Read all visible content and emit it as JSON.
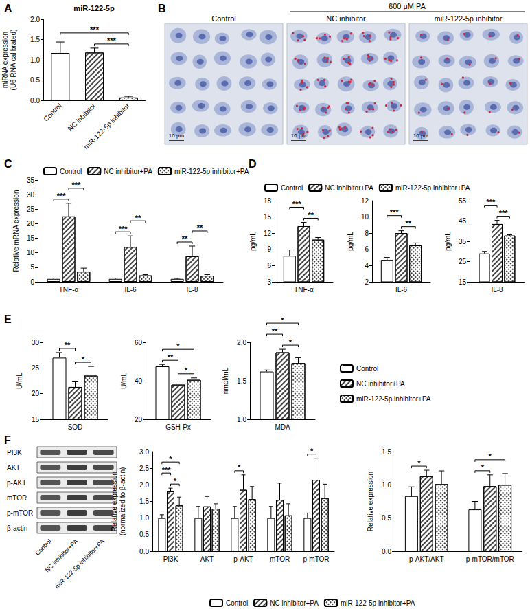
{
  "panel_labels": [
    "A",
    "B",
    "C",
    "D",
    "E",
    "F"
  ],
  "micrographs": {
    "treatment": "600 μM PA",
    "panels": [
      {
        "label": "Control",
        "scale_bar": "10 μm"
      },
      {
        "label": "NC inhibitor",
        "scale_bar": "10 μm"
      },
      {
        "label": "miR-122-5p inhibitor",
        "scale_bar": "10 μm"
      }
    ]
  },
  "western_blot": {
    "rows": [
      "PI3K",
      "AKT",
      "p-AKT",
      "mTOR",
      "p-mTOR",
      "β-actin"
    ],
    "lanes": [
      "Control",
      "NC inhibitor+PA",
      "miR-122-5p inhibitor+PA"
    ]
  },
  "chart_data": [
    {
      "type": "bar",
      "title": "miR-122-5p",
      "y_label": "miRNA expression\n(U6 RNA calibrated)",
      "categories": [
        "Control",
        "NC inhibitor",
        "miR-122-5p inhibitor"
      ],
      "values": [
        1.17,
        1.18,
        0.07
      ],
      "errors": [
        0.27,
        0.11,
        0.03
      ],
      "color": "#ffffff",
      "ylim": [
        0,
        2
      ],
      "yticks": [
        {
          "value": 0,
          "label": "0.0"
        },
        {
          "value": 0.5,
          "label": "0.5"
        },
        {
          "value": 1,
          "label": "1.0"
        },
        {
          "value": 1.5,
          "label": "1.5"
        },
        {
          "value": 2,
          "label": "2.0"
        }
      ],
      "annotations": [
        {
          "between": [
            "NC inhibitor",
            "miR-122-5p inhibitor"
          ],
          "text": "***"
        },
        {
          "between": [
            "Control",
            "miR-122-5p inhibitor"
          ],
          "text": "***"
        }
      ]
    },
    {
      "type": "bar",
      "y_label": "Relative mRNA expression",
      "categories": [
        "TNF-α",
        "IL-6",
        "IL-8"
      ],
      "series": [
        {
          "name": "Control",
          "color": "#ffffff",
          "values": [
            1.0,
            1.0,
            1.0
          ],
          "errors": [
            0.3,
            0.3,
            0.2
          ]
        },
        {
          "name": "NC inhibitor+PA",
          "color": "#ffffff",
          "values": [
            22.5,
            12.0,
            8.8
          ],
          "errors": [
            4.5,
            3.8,
            3.5
          ]
        },
        {
          "name": "miR-122-5p inhibitor+PA",
          "color": "#ffffff",
          "values": [
            3.5,
            2.2,
            2.1
          ],
          "errors": [
            1.2,
            0.3,
            0.4
          ]
        }
      ],
      "ylim": [
        0,
        35
      ],
      "yticks": [
        0,
        5,
        10,
        15,
        20,
        25,
        30,
        35
      ],
      "legend": "top",
      "annotations": [
        {
          "category": "TNF-α",
          "between": [
            "Control",
            "NC inhibitor+PA"
          ],
          "text": "***"
        },
        {
          "category": "TNF-α",
          "between": [
            "NC inhibitor+PA",
            "miR-122-5p inhibitor+PA"
          ],
          "text": "***"
        },
        {
          "category": "IL-6",
          "between": [
            "Control",
            "NC inhibitor+PA"
          ],
          "text": "***"
        },
        {
          "category": "IL-6",
          "between": [
            "NC inhibitor+PA",
            "miR-122-5p inhibitor+PA"
          ],
          "text": "**"
        },
        {
          "category": "IL-8",
          "between": [
            "Control",
            "NC inhibitor+PA"
          ],
          "text": "**"
        },
        {
          "category": "IL-8",
          "between": [
            "NC inhibitor+PA",
            "miR-122-5p inhibitor+PA"
          ],
          "text": "**"
        }
      ]
    },
    {
      "type": "bar",
      "y_label": "pg/mL",
      "categories": [
        "TNF-α"
      ],
      "series": [
        {
          "name": "Control",
          "color": "#ffffff",
          "values": [
            7.8
          ],
          "errors": [
            1.1
          ]
        },
        {
          "name": "NC inhibitor+PA",
          "color": "#ffffff",
          "values": [
            13.3
          ],
          "errors": [
            0.7
          ]
        },
        {
          "name": "miR-122-5p inhibitor+PA",
          "color": "#ffffff",
          "values": [
            10.8
          ],
          "errors": [
            0.4
          ]
        }
      ],
      "ylim": [
        3,
        18
      ],
      "yticks": [
        3,
        6,
        9,
        12,
        15,
        18
      ],
      "legend": "top",
      "annotations": [
        {
          "category": "TNF-α",
          "between": [
            "NC inhibitor+PA",
            "miR-122-5p inhibitor+PA"
          ],
          "text": "**"
        },
        {
          "category": "TNF-α",
          "between": [
            "Control",
            "NC inhibitor+PA"
          ],
          "text": "***"
        }
      ]
    },
    {
      "type": "bar",
      "y_label": "pg/mL",
      "categories": [
        "IL-6"
      ],
      "series": [
        {
          "name": "Control",
          "color": "#ffffff",
          "values": [
            4.7
          ],
          "errors": [
            0.3
          ]
        },
        {
          "name": "NC inhibitor+PA",
          "color": "#ffffff",
          "values": [
            8.0
          ],
          "errors": [
            0.3
          ]
        },
        {
          "name": "miR-122-5p inhibitor+PA",
          "color": "#ffffff",
          "values": [
            6.5
          ],
          "errors": [
            0.3
          ]
        }
      ],
      "ylim": [
        2,
        12
      ],
      "yticks": [
        2,
        4,
        6,
        8,
        10,
        12
      ],
      "annotations": [
        {
          "category": "IL-6",
          "between": [
            "NC inhibitor+PA",
            "miR-122-5p inhibitor+PA"
          ],
          "text": "**"
        },
        {
          "category": "IL-6",
          "between": [
            "Control",
            "NC inhibitor+PA"
          ],
          "text": "***"
        }
      ]
    },
    {
      "type": "bar",
      "y_label": "pg/mL",
      "categories": [
        "IL-8"
      ],
      "series": [
        {
          "name": "Control",
          "color": "#ffffff",
          "values": [
            29.0
          ],
          "errors": [
            1.0
          ]
        },
        {
          "name": "NC inhibitor+PA",
          "color": "#ffffff",
          "values": [
            43.5
          ],
          "errors": [
            1.8
          ]
        },
        {
          "name": "miR-122-5p inhibitor+PA",
          "color": "#ffffff",
          "values": [
            37.8
          ],
          "errors": [
            0.4
          ]
        }
      ],
      "ylim": [
        15,
        55
      ],
      "yticks": [
        15,
        25,
        35,
        45,
        55
      ],
      "annotations": [
        {
          "category": "IL-8",
          "between": [
            "NC inhibitor+PA",
            "miR-122-5p inhibitor+PA"
          ],
          "text": "***"
        },
        {
          "category": "IL-8",
          "between": [
            "Control",
            "NC inhibitor+PA"
          ],
          "text": "***"
        }
      ]
    },
    {
      "type": "bar",
      "y_label": "U/mL",
      "categories": [
        "SOD"
      ],
      "series": [
        {
          "name": "Control",
          "color": "#ffffff",
          "values": [
            27.0
          ],
          "errors": [
            1.0
          ]
        },
        {
          "name": "NC inhibitor+PA",
          "color": "#ffffff",
          "values": [
            21.3
          ],
          "errors": [
            1.0
          ]
        },
        {
          "name": "miR-122-5p inhibitor+PA",
          "color": "#ffffff",
          "values": [
            23.5
          ],
          "errors": [
            1.8
          ]
        }
      ],
      "ylim": [
        15,
        30
      ],
      "yticks": [
        15,
        20,
        25,
        30
      ],
      "annotations": [
        {
          "category": "SOD",
          "between": [
            "NC inhibitor+PA",
            "miR-122-5p inhibitor+PA"
          ],
          "text": "*"
        },
        {
          "category": "SOD",
          "between": [
            "Control",
            "NC inhibitor+PA"
          ],
          "text": "**"
        }
      ]
    },
    {
      "type": "bar",
      "y_label": "U/mL",
      "categories": [
        "GSH-Px"
      ],
      "series": [
        {
          "name": "Control",
          "color": "#ffffff",
          "values": [
            47.5
          ],
          "errors": [
            1.0
          ]
        },
        {
          "name": "NC inhibitor+PA",
          "color": "#ffffff",
          "values": [
            38.0
          ],
          "errors": [
            1.8
          ]
        },
        {
          "name": "miR-122-5p inhibitor+PA",
          "color": "#ffffff",
          "values": [
            40.5
          ],
          "errors": [
            1.0
          ]
        }
      ],
      "ylim": [
        20,
        60
      ],
      "yticks": [
        20,
        40,
        60
      ],
      "annotations": [
        {
          "category": "GSH-Px",
          "between": [
            "NC inhibitor+PA",
            "miR-122-5p inhibitor+PA"
          ],
          "text": "*"
        },
        {
          "category": "GSH-Px",
          "between": [
            "Control",
            "NC inhibitor+PA"
          ],
          "text": "**"
        },
        {
          "category": "GSH-Px",
          "between": [
            "Control",
            "miR-122-5p inhibitor+PA"
          ],
          "text": "*"
        }
      ]
    },
    {
      "type": "bar",
      "y_label": "nmol/mL",
      "categories": [
        "MDA"
      ],
      "series": [
        {
          "name": "Control",
          "color": "#ffffff",
          "values": [
            1.62
          ],
          "errors": [
            0.02
          ]
        },
        {
          "name": "NC inhibitor+PA",
          "color": "#ffffff",
          "values": [
            1.87
          ],
          "errors": [
            0.04
          ]
        },
        {
          "name": "miR-122-5p inhibitor+PA",
          "color": "#ffffff",
          "values": [
            1.73
          ],
          "errors": [
            0.07
          ]
        }
      ],
      "ylim": [
        1,
        2
      ],
      "yticks": [
        {
          "value": 1,
          "label": "1.0"
        },
        {
          "value": 1.5,
          "label": "1.5"
        },
        {
          "value": 2,
          "label": "2.0"
        }
      ],
      "legend": "right",
      "annotations": [
        {
          "category": "MDA",
          "between": [
            "NC inhibitor+PA",
            "miR-122-5p inhibitor+PA"
          ],
          "text": "*"
        },
        {
          "category": "MDA",
          "between": [
            "Control",
            "NC inhibitor+PA"
          ],
          "text": "**"
        },
        {
          "category": "MDA",
          "between": [
            "Control",
            "miR-122-5p inhibitor+PA"
          ],
          "text": "*"
        }
      ]
    },
    {
      "type": "bar",
      "y_label": "Relative expression\n(normalized to β-actin)",
      "categories": [
        "PI3K",
        "AKT",
        "p-AKT",
        "mTOR",
        "p-mTOR"
      ],
      "series": [
        {
          "name": "Control",
          "color": "#ffffff",
          "values": [
            1.0,
            1.0,
            1.0,
            1.0,
            1.0
          ],
          "errors": [
            0.1,
            0.35,
            0.35,
            0.35,
            0.15
          ]
        },
        {
          "name": "NC inhibitor+PA",
          "color": "#ffffff",
          "values": [
            1.8,
            1.35,
            1.85,
            1.55,
            2.15
          ],
          "errors": [
            0.1,
            0.3,
            0.45,
            0.5,
            0.65
          ]
        },
        {
          "name": "miR-122-5p inhibitor+PA",
          "color": "#ffffff",
          "values": [
            1.38,
            1.28,
            1.57,
            1.08,
            1.6
          ],
          "errors": [
            0.25,
            0.15,
            0.38,
            0.35,
            0.42
          ]
        }
      ],
      "ylim": [
        0,
        3
      ],
      "yticks": [
        {
          "value": 0,
          "label": "0.0"
        },
        {
          "value": 0.5,
          "label": "0.5"
        },
        {
          "value": 1,
          "label": "1.0"
        },
        {
          "value": 1.5,
          "label": "1.5"
        },
        {
          "value": 2,
          "label": "2.0"
        },
        {
          "value": 2.5,
          "label": "2.5"
        },
        {
          "value": 3,
          "label": "3.0"
        }
      ],
      "legend": "bottom",
      "annotations": [
        {
          "category": "PI3K",
          "between": [
            "NC inhibitor+PA",
            "miR-122-5p inhibitor+PA"
          ],
          "text": "*"
        },
        {
          "category": "PI3K",
          "between": [
            "Control",
            "NC inhibitor+PA"
          ],
          "text": "***"
        },
        {
          "category": "PI3K",
          "between": [
            "Control",
            "miR-122-5p inhibitor+PA"
          ],
          "text": "*"
        },
        {
          "category": "p-AKT",
          "between": [
            "Control",
            "NC inhibitor+PA"
          ],
          "text": "*"
        },
        {
          "category": "p-mTOR",
          "between": [
            "Control",
            "NC inhibitor+PA"
          ],
          "text": "*"
        }
      ]
    },
    {
      "type": "bar",
      "y_label": "Relative expression",
      "categories": [
        "p-AKT/AKT",
        "p-mTOR/mTOR"
      ],
      "series": [
        {
          "name": "Control",
          "color": "#ffffff",
          "values": [
            0.83,
            0.63
          ],
          "errors": [
            0.14,
            0.12
          ]
        },
        {
          "name": "NC inhibitor+PA",
          "color": "#ffffff",
          "values": [
            1.13,
            0.98
          ],
          "errors": [
            0.09,
            0.17
          ]
        },
        {
          "name": "miR-122-5p inhibitor+PA",
          "color": "#ffffff",
          "values": [
            1.01,
            1.0
          ],
          "errors": [
            0.2,
            0.17
          ]
        }
      ],
      "ylim": [
        0,
        1.5
      ],
      "yticks": [
        {
          "value": 0,
          "label": "0.0"
        },
        {
          "value": 0.5,
          "label": "0.5"
        },
        {
          "value": 1,
          "label": "1.0"
        },
        {
          "value": 1.5,
          "label": "1.5"
        }
      ],
      "annotations": [
        {
          "category": "p-AKT/AKT",
          "between": [
            "Control",
            "NC inhibitor+PA"
          ],
          "text": "*"
        },
        {
          "category": "p-mTOR/mTOR",
          "between": [
            "Control",
            "NC inhibitor+PA"
          ],
          "text": "*"
        },
        {
          "category": "p-mTOR/mTOR",
          "between": [
            "Control",
            "miR-122-5p inhibitor+PA"
          ],
          "text": "*"
        }
      ]
    }
  ]
}
